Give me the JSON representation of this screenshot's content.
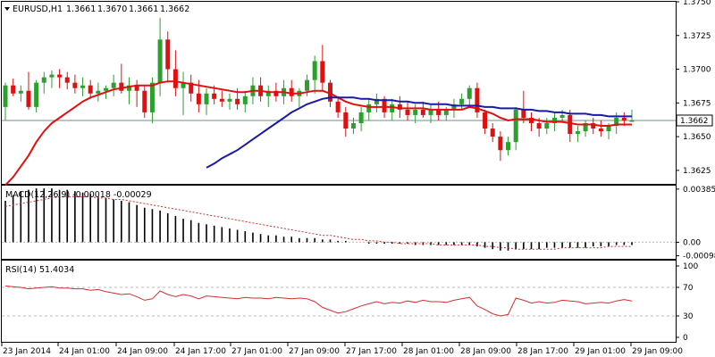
{
  "colors": {
    "bull": "#2ca02c",
    "bear": "#e01010",
    "ma_fast": "#e01010",
    "ma_slow": "#1a1aa8",
    "macd_hist": "#000000",
    "macd_signal": "#d03030",
    "rsi": "#d03030",
    "bid_line": "#6f8f8f",
    "axis": "#000000",
    "level": "#bbbbbb"
  },
  "chart_data": [
    {
      "type": "candlestick",
      "title": "EURUSD,H1",
      "ohlc_header": [
        "1.3661",
        "1.3670",
        "1.3661",
        "1.3662"
      ],
      "ylim": [
        1.3615,
        1.375
      ],
      "y_ticks": [
        "1.3750",
        "1.3725",
        "1.3700",
        "1.3675",
        "1.3650",
        "1.3625"
      ],
      "last_price": "1.3662",
      "grid": false,
      "candles": [
        [
          1.3672,
          1.369,
          1.3662,
          1.3688
        ],
        [
          1.3688,
          1.3693,
          1.368,
          1.3682
        ],
        [
          1.3682,
          1.3688,
          1.3676,
          1.3684
        ],
        [
          1.3684,
          1.3698,
          1.367,
          1.3672
        ],
        [
          1.3672,
          1.3692,
          1.3668,
          1.369
        ],
        [
          1.369,
          1.3698,
          1.3682,
          1.3694
        ],
        [
          1.3694,
          1.3699,
          1.3686,
          1.3696
        ],
        [
          1.3696,
          1.37,
          1.3686,
          1.3694
        ],
        [
          1.3694,
          1.3698,
          1.3685,
          1.369
        ],
        [
          1.369,
          1.3696,
          1.3682,
          1.3686
        ],
        [
          1.3686,
          1.3694,
          1.368,
          1.3688
        ],
        [
          1.3688,
          1.3692,
          1.3678,
          1.3682
        ],
        [
          1.3682,
          1.369,
          1.3676,
          1.3684
        ],
        [
          1.3684,
          1.3688,
          1.3678,
          1.3686
        ],
        [
          1.3686,
          1.3696,
          1.368,
          1.369
        ],
        [
          1.369,
          1.3704,
          1.3682,
          1.3684
        ],
        [
          1.3684,
          1.3694,
          1.3674,
          1.3688
        ],
        [
          1.3688,
          1.3692,
          1.3672,
          1.3684
        ],
        [
          1.3684,
          1.3688,
          1.3664,
          1.3668
        ],
        [
          1.3668,
          1.3694,
          1.366,
          1.369
        ],
        [
          1.369,
          1.3738,
          1.368,
          1.3722
        ],
        [
          1.3722,
          1.3728,
          1.369,
          1.37
        ],
        [
          1.37,
          1.3714,
          1.368,
          1.3686
        ],
        [
          1.3686,
          1.3698,
          1.3666,
          1.369
        ],
        [
          1.369,
          1.3696,
          1.3676,
          1.3682
        ],
        [
          1.3682,
          1.3692,
          1.3668,
          1.3674
        ],
        [
          1.3674,
          1.3686,
          1.3666,
          1.3682
        ],
        [
          1.3682,
          1.3688,
          1.3674,
          1.3678
        ],
        [
          1.3678,
          1.3684,
          1.3672,
          1.3676
        ],
        [
          1.3676,
          1.3682,
          1.367,
          1.3678
        ],
        [
          1.3678,
          1.3686,
          1.367,
          1.3674
        ],
        [
          1.3674,
          1.3684,
          1.3668,
          1.368
        ],
        [
          1.368,
          1.3694,
          1.3674,
          1.3688
        ],
        [
          1.3688,
          1.3694,
          1.3676,
          1.368
        ],
        [
          1.368,
          1.3688,
          1.3672,
          1.3684
        ],
        [
          1.3684,
          1.369,
          1.3676,
          1.368
        ],
        [
          1.368,
          1.3692,
          1.3674,
          1.3686
        ],
        [
          1.3686,
          1.3692,
          1.3676,
          1.368
        ],
        [
          1.368,
          1.3686,
          1.3672,
          1.3684
        ],
        [
          1.3684,
          1.3696,
          1.368,
          1.3692
        ],
        [
          1.3692,
          1.371,
          1.3682,
          1.3706
        ],
        [
          1.3706,
          1.3718,
          1.3684,
          1.369
        ],
        [
          1.369,
          1.3692,
          1.3672,
          1.3676
        ],
        [
          1.3676,
          1.368,
          1.3664,
          1.3668
        ],
        [
          1.3668,
          1.3672,
          1.365,
          1.3656
        ],
        [
          1.3656,
          1.3664,
          1.3652,
          1.366
        ],
        [
          1.366,
          1.3672,
          1.3654,
          1.3668
        ],
        [
          1.3668,
          1.3678,
          1.3662,
          1.3674
        ],
        [
          1.3674,
          1.3682,
          1.3668,
          1.3678
        ],
        [
          1.3678,
          1.368,
          1.3664,
          1.3668
        ],
        [
          1.3668,
          1.3678,
          1.3662,
          1.3674
        ],
        [
          1.3674,
          1.368,
          1.3664,
          1.367
        ],
        [
          1.367,
          1.3676,
          1.3662,
          1.3666
        ],
        [
          1.3666,
          1.3674,
          1.366,
          1.367
        ],
        [
          1.367,
          1.3676,
          1.3664,
          1.3666
        ],
        [
          1.3666,
          1.3674,
          1.366,
          1.367
        ],
        [
          1.367,
          1.3676,
          1.3662,
          1.3666
        ],
        [
          1.3666,
          1.3672,
          1.3662,
          1.367
        ],
        [
          1.367,
          1.3678,
          1.3664,
          1.3674
        ],
        [
          1.3674,
          1.3682,
          1.367,
          1.3678
        ],
        [
          1.3678,
          1.3688,
          1.3672,
          1.3686
        ],
        [
          1.3686,
          1.369,
          1.3664,
          1.3668
        ],
        [
          1.3668,
          1.367,
          1.3652,
          1.3656
        ],
        [
          1.3656,
          1.366,
          1.3646,
          1.365
        ],
        [
          1.365,
          1.3654,
          1.3632,
          1.364
        ],
        [
          1.364,
          1.365,
          1.3636,
          1.3646
        ],
        [
          1.3646,
          1.3672,
          1.364,
          1.367
        ],
        [
          1.367,
          1.3684,
          1.366,
          1.3664
        ],
        [
          1.3664,
          1.3668,
          1.3654,
          1.366
        ],
        [
          1.366,
          1.3664,
          1.365,
          1.3656
        ],
        [
          1.3656,
          1.3664,
          1.3652,
          1.366
        ],
        [
          1.366,
          1.3668,
          1.3654,
          1.3664
        ],
        [
          1.3664,
          1.367,
          1.366,
          1.3666
        ],
        [
          1.3666,
          1.367,
          1.3646,
          1.3652
        ],
        [
          1.3652,
          1.3658,
          1.3646,
          1.3654
        ],
        [
          1.3654,
          1.3662,
          1.365,
          1.366
        ],
        [
          1.366,
          1.3664,
          1.3652,
          1.3656
        ],
        [
          1.3656,
          1.3662,
          1.365,
          1.3654
        ],
        [
          1.3654,
          1.366,
          1.3648,
          1.3658
        ],
        [
          1.3658,
          1.3668,
          1.3652,
          1.3664
        ],
        [
          1.3664,
          1.3668,
          1.3658,
          1.3662
        ],
        [
          1.3661,
          1.367,
          1.3661,
          1.3662
        ]
      ],
      "moving_averages": [
        {
          "name": "fast",
          "values": [
            1.3614,
            1.362,
            1.3628,
            1.3636,
            1.3646,
            1.3654,
            1.366,
            1.3664,
            1.3668,
            1.3672,
            1.3676,
            1.3679,
            1.3681,
            1.3683,
            1.3685,
            1.3686,
            1.3687,
            1.3688,
            1.3688,
            1.3688,
            1.369,
            1.3691,
            1.3691,
            1.369,
            1.3689,
            1.3688,
            1.3687,
            1.3686,
            1.3685,
            1.3684,
            1.3683,
            1.3683,
            1.3684,
            1.3684,
            1.3683,
            1.3683,
            1.3683,
            1.3682,
            1.3682,
            1.3683,
            1.3684,
            1.3684,
            1.3682,
            1.3679,
            1.3676,
            1.3674,
            1.3673,
            1.3672,
            1.3672,
            1.3672,
            1.3672,
            1.3671,
            1.3671,
            1.3671,
            1.3671,
            1.367,
            1.367,
            1.367,
            1.367,
            1.367,
            1.3672,
            1.3671,
            1.3669,
            1.3667,
            1.3664,
            1.3662,
            1.3663,
            1.3663,
            1.3663,
            1.3662,
            1.3661,
            1.3661,
            1.3661,
            1.366,
            1.3659,
            1.3659,
            1.3659,
            1.3658,
            1.3658,
            1.3659,
            1.3659,
            1.3659
          ]
        },
        {
          "name": "slow",
          "values": [
            null,
            null,
            null,
            null,
            null,
            null,
            null,
            null,
            null,
            null,
            null,
            null,
            null,
            null,
            null,
            null,
            null,
            null,
            null,
            null,
            null,
            null,
            null,
            null,
            null,
            null,
            1.3627,
            1.363,
            1.3634,
            1.3637,
            1.364,
            1.3644,
            1.3648,
            1.3652,
            1.3656,
            1.366,
            1.3664,
            1.3668,
            1.3671,
            1.3674,
            1.3676,
            1.3678,
            1.3679,
            1.3679,
            1.3679,
            1.3679,
            1.3678,
            1.3678,
            1.3677,
            1.3677,
            1.3677,
            1.3676,
            1.3676,
            1.3675,
            1.3675,
            1.3674,
            1.3674,
            1.3674,
            1.3673,
            1.3673,
            1.3673,
            1.3673,
            1.3672,
            1.3672,
            1.3671,
            1.3671,
            1.3671,
            1.367,
            1.367,
            1.3669,
            1.3669,
            1.3668,
            1.3668,
            1.3667,
            1.3667,
            1.3667,
            1.3666,
            1.3666,
            1.3665,
            1.3665,
            1.3665,
            1.3665
          ]
        }
      ]
    },
    {
      "type": "bar",
      "title": "MACD(12,26,9) -0.00018 -0.00029",
      "ylim": [
        -0.0012,
        0.0041
      ],
      "y_ticks": [
        "0.00385",
        "0.00",
        "-0.00098"
      ],
      "series": [
        {
          "name": "histogram",
          "values": [
            0.003,
            0.0034,
            0.0037,
            0.0038,
            0.0039,
            0.0039,
            0.0039,
            0.0038,
            0.0038,
            0.0037,
            0.0036,
            0.0035,
            0.0033,
            0.0032,
            0.0031,
            0.003,
            0.0029,
            0.0027,
            0.0025,
            0.0024,
            0.0023,
            0.0021,
            0.0019,
            0.0017,
            0.0016,
            0.0014,
            0.0013,
            0.0012,
            0.0011,
            0.001,
            0.0009,
            0.0008,
            0.0007,
            0.0006,
            0.0005,
            0.0005,
            0.0004,
            0.0004,
            0.0003,
            0.0003,
            0.0003,
            0.0002,
            0.0002,
            0.0001,
            0.0001,
            0.0,
            0.0,
            -0.0001,
            -0.0001,
            -0.0001,
            -0.0001,
            -0.0001,
            -0.0001,
            -0.0002,
            -0.0002,
            -0.0002,
            -0.0002,
            -0.0002,
            -0.0002,
            -0.0002,
            -0.0002,
            -0.0003,
            -0.0004,
            -0.0005,
            -0.0006,
            -0.0006,
            -0.0005,
            -0.0005,
            -0.0005,
            -0.0005,
            -0.0004,
            -0.0004,
            -0.0004,
            -0.0004,
            -0.0004,
            -0.0004,
            -0.0003,
            -0.0003,
            -0.0003,
            -0.0002,
            -0.0002,
            -0.0002
          ]
        },
        {
          "name": "signal",
          "values": [
            0.0026,
            0.0027,
            0.0028,
            0.0029,
            0.003,
            0.0031,
            0.0032,
            0.0033,
            0.0033,
            0.0033,
            0.0033,
            0.0033,
            0.0032,
            0.0032,
            0.0031,
            0.0031,
            0.003,
            0.0029,
            0.0028,
            0.0027,
            0.0026,
            0.0025,
            0.0024,
            0.0023,
            0.0022,
            0.0021,
            0.002,
            0.0019,
            0.0018,
            0.0017,
            0.0016,
            0.0015,
            0.0014,
            0.0013,
            0.0012,
            0.0011,
            0.001,
            0.0009,
            0.0008,
            0.0007,
            0.0006,
            0.0005,
            0.0005,
            0.0004,
            0.0003,
            0.0002,
            0.0002,
            0.0001,
            0.0001,
            0.0,
            0.0,
            -0.0001,
            -0.0001,
            -0.0001,
            -0.0001,
            -0.0001,
            -0.0002,
            -0.0002,
            -0.0002,
            -0.0002,
            -0.0002,
            -0.0002,
            -0.0003,
            -0.0003,
            -0.0004,
            -0.0004,
            -0.0005,
            -0.0005,
            -0.0005,
            -0.0005,
            -0.0005,
            -0.0005,
            -0.0004,
            -0.0004,
            -0.0004,
            -0.0004,
            -0.0004,
            -0.0004,
            -0.0003,
            -0.0003,
            -0.0003,
            -0.0003
          ]
        }
      ]
    },
    {
      "type": "line",
      "title": "RSI(14) 51.4034",
      "ylim": [
        0,
        100
      ],
      "y_ticks": [
        "100",
        "70",
        "30",
        "0"
      ],
      "levels": [
        70,
        30
      ],
      "series": [
        {
          "name": "RSI",
          "values": [
            72,
            71,
            70,
            68,
            69,
            70,
            71,
            69,
            69,
            68,
            68,
            66,
            67,
            64,
            62,
            60,
            61,
            57,
            52,
            54,
            65,
            60,
            57,
            60,
            58,
            54,
            58,
            57,
            56,
            55,
            54,
            56,
            55,
            55,
            54,
            56,
            55,
            54,
            55,
            54,
            50,
            42,
            38,
            34,
            36,
            40,
            44,
            47,
            50,
            47,
            49,
            48,
            51,
            49,
            52,
            50,
            50,
            49,
            52,
            54,
            56,
            44,
            39,
            33,
            30,
            32,
            55,
            52,
            48,
            50,
            48,
            49,
            52,
            51,
            50,
            47,
            48,
            49,
            48,
            51,
            53,
            51
          ]
        }
      ]
    }
  ],
  "x_axis_labels": [
    "23 Jan 2014",
    "24 Jan 01:00",
    "24 Jan 09:00",
    "24 Jan 17:00",
    "27 Jan 01:00",
    "27 Jan 09:00",
    "27 Jan 17:00",
    "28 Jan 01:00",
    "28 Jan 09:00",
    "28 Jan 17:00",
    "29 Jan 01:00",
    "29 Jan 09:00"
  ]
}
